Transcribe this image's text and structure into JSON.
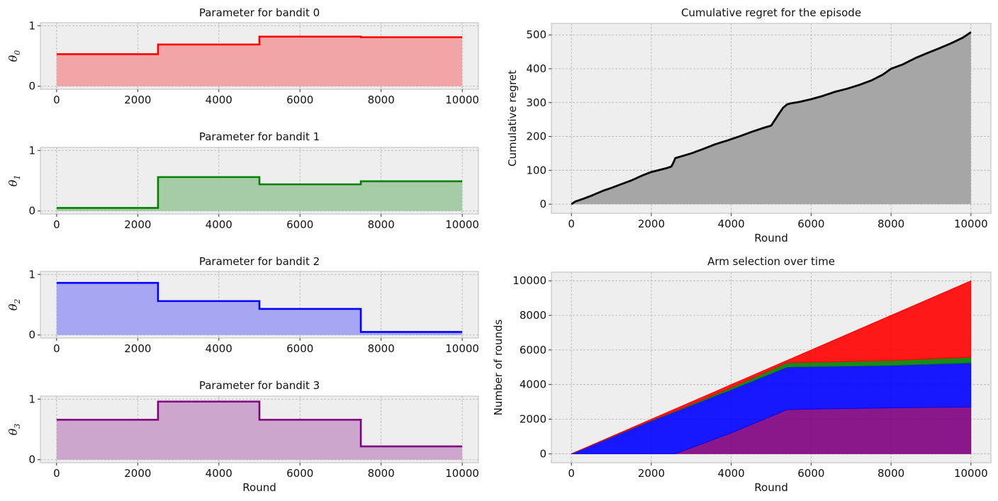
{
  "chart_data": [
    {
      "id": "bandit0",
      "type": "area",
      "title": "Parameter for bandit 0",
      "ylabel_symbol": "θ",
      "ylabel_sub": "0",
      "xlabel": "",
      "xlim": [
        0,
        10000
      ],
      "ylim": [
        0,
        1
      ],
      "xticks": [
        0,
        2000,
        4000,
        6000,
        8000,
        10000
      ],
      "yticks": [
        0,
        1
      ],
      "grid": true,
      "color": "#ff0000",
      "fill": "#f2a5a5",
      "steps": [
        {
          "x0": 0,
          "x1": 2500,
          "y": 0.53
        },
        {
          "x0": 2500,
          "x1": 5000,
          "y": 0.69
        },
        {
          "x0": 5000,
          "x1": 7500,
          "y": 0.82
        },
        {
          "x0": 7500,
          "x1": 10000,
          "y": 0.81
        }
      ]
    },
    {
      "id": "bandit1",
      "type": "area",
      "title": "Parameter for bandit 1",
      "ylabel_symbol": "θ",
      "ylabel_sub": "1",
      "xlabel": "",
      "xlim": [
        0,
        10000
      ],
      "ylim": [
        0,
        1
      ],
      "xticks": [
        0,
        2000,
        4000,
        6000,
        8000,
        10000
      ],
      "yticks": [
        0,
        1
      ],
      "grid": true,
      "color": "#008000",
      "fill": "#a6cca6",
      "steps": [
        {
          "x0": 0,
          "x1": 2500,
          "y": 0.05
        },
        {
          "x0": 2500,
          "x1": 5000,
          "y": 0.56
        },
        {
          "x0": 5000,
          "x1": 7500,
          "y": 0.44
        },
        {
          "x0": 7500,
          "x1": 10000,
          "y": 0.49
        }
      ]
    },
    {
      "id": "bandit2",
      "type": "area",
      "title": "Parameter for bandit 2",
      "ylabel_symbol": "θ",
      "ylabel_sub": "2",
      "xlabel": "",
      "xlim": [
        0,
        10000
      ],
      "ylim": [
        0,
        1
      ],
      "xticks": [
        0,
        2000,
        4000,
        6000,
        8000,
        10000
      ],
      "yticks": [
        0,
        1
      ],
      "grid": true,
      "color": "#0000ff",
      "fill": "#a6a6f2",
      "steps": [
        {
          "x0": 0,
          "x1": 2500,
          "y": 0.86
        },
        {
          "x0": 2500,
          "x1": 5000,
          "y": 0.56
        },
        {
          "x0": 5000,
          "x1": 7500,
          "y": 0.43
        },
        {
          "x0": 7500,
          "x1": 10000,
          "y": 0.05
        }
      ]
    },
    {
      "id": "bandit3",
      "type": "area",
      "title": "Parameter for bandit 3",
      "ylabel_symbol": "θ",
      "ylabel_sub": "3",
      "xlabel": "Round",
      "xlim": [
        0,
        10000
      ],
      "ylim": [
        0,
        1
      ],
      "xticks": [
        0,
        2000,
        4000,
        6000,
        8000,
        10000
      ],
      "yticks": [
        0,
        1
      ],
      "grid": true,
      "color": "#800080",
      "fill": "#cca6cc",
      "steps": [
        {
          "x0": 0,
          "x1": 2500,
          "y": 0.66
        },
        {
          "x0": 2500,
          "x1": 5000,
          "y": 0.96
        },
        {
          "x0": 5000,
          "x1": 7500,
          "y": 0.66
        },
        {
          "x0": 7500,
          "x1": 10000,
          "y": 0.22
        }
      ]
    },
    {
      "id": "regret",
      "type": "area",
      "title": "Cumulative regret for the episode",
      "xlabel": "Round",
      "ylabel": "Cumulative regret",
      "xlim": [
        0,
        10000
      ],
      "ylim": [
        0,
        500
      ],
      "xticks": [
        0,
        2000,
        4000,
        6000,
        8000,
        10000
      ],
      "yticks": [
        0,
        100,
        200,
        300,
        400,
        500
      ],
      "grid": true,
      "color": "#000000",
      "fill": "#a6a6a6",
      "x": [
        0,
        100,
        300,
        500,
        800,
        1000,
        1200,
        1500,
        1800,
        2000,
        2200,
        2400,
        2500,
        2550,
        2600,
        2800,
        3000,
        3300,
        3600,
        3900,
        4200,
        4500,
        4800,
        5000,
        5100,
        5200,
        5300,
        5400,
        5500,
        5700,
        6000,
        6300,
        6600,
        6900,
        7200,
        7500,
        7800,
        8000,
        8300,
        8600,
        8900,
        9200,
        9500,
        9800,
        10000
      ],
      "y": [
        0,
        8,
        16,
        25,
        40,
        48,
        57,
        70,
        86,
        95,
        101,
        107,
        111,
        122,
        136,
        143,
        150,
        163,
        177,
        188,
        200,
        213,
        225,
        232,
        250,
        268,
        285,
        295,
        298,
        302,
        310,
        320,
        332,
        341,
        352,
        365,
        383,
        400,
        413,
        431,
        446,
        460,
        475,
        492,
        508
      ]
    },
    {
      "id": "arms",
      "type": "area",
      "title": "Arm selection over time",
      "xlabel": "Round",
      "ylabel": "Number of rounds",
      "xlim": [
        0,
        10000
      ],
      "ylim": [
        0,
        10000
      ],
      "xticks": [
        0,
        2000,
        4000,
        6000,
        8000,
        10000
      ],
      "yticks": [
        0,
        2000,
        4000,
        6000,
        8000,
        10000
      ],
      "grid": true,
      "stacked": true,
      "x": [
        0,
        2000,
        2600,
        4000,
        5400,
        6000,
        8000,
        10000
      ],
      "series": [
        {
          "color": "#800080",
          "alpha": 0.9,
          "values": [
            0,
            0,
            0,
            1200,
            2550,
            2580,
            2650,
            2700
          ]
        },
        {
          "color": "#0000ff",
          "alpha": 0.9,
          "values": [
            0,
            1900,
            2430,
            2500,
            2460,
            2450,
            2450,
            2550
          ]
        },
        {
          "color": "#008000",
          "alpha": 0.9,
          "values": [
            0,
            25,
            35,
            120,
            250,
            260,
            290,
            330
          ]
        },
        {
          "color": "#ff0000",
          "alpha": 0.9,
          "values": [
            0,
            75,
            135,
            180,
            140,
            710,
            2610,
            4420
          ]
        }
      ]
    }
  ]
}
